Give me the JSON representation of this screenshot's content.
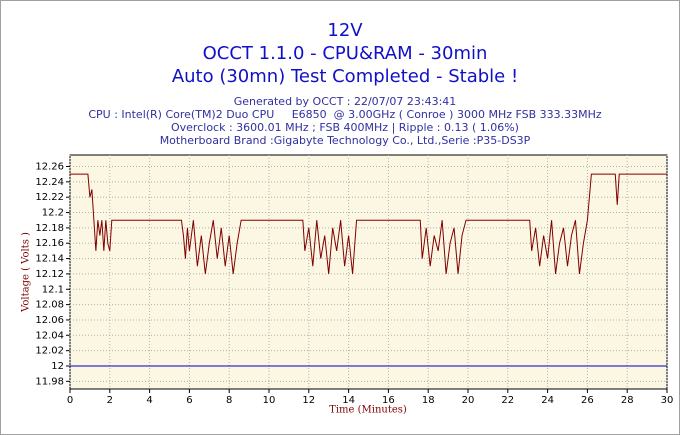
{
  "chart_data": {
    "type": "line",
    "title": [
      "12V",
      "OCCT 1.1.0 - CPU&RAM - 30min",
      "Auto (30mn) Test Completed - Stable !"
    ],
    "subtitle": [
      "Generated by OCCT : 22/07/07 23:43:41",
      "CPU : Intel(R) Core(TM)2 Duo CPU     E6850  @ 3.00GHz ( Conroe ) 3000 MHz FSB 333.33MHz",
      "Overclock : 3600.01 MHz ; FSB 400MHz | Ripple : 0.13 ( 1.06%)",
      "Motherboard Brand :Gigabyte Technology Co., Ltd.,Serie :P35-DS3P"
    ],
    "xlabel": "Time (Minutes)",
    "ylabel": "Voltage ( Volts )",
    "xlim": [
      0,
      30
    ],
    "xticks": [
      0,
      2,
      4,
      6,
      8,
      10,
      12,
      14,
      16,
      18,
      20,
      22,
      24,
      26,
      28,
      30
    ],
    "ylim": [
      11.97,
      12.275
    ],
    "yticks": [
      11.98,
      12,
      12.02,
      12.04,
      12.06,
      12.08,
      12.1,
      12.12,
      12.14,
      12.16,
      12.18,
      12.2,
      12.22,
      12.24,
      12.26
    ],
    "grid": true,
    "series": [
      {
        "color": "#0000c0",
        "x": [
          0,
          30
        ],
        "values": [
          12,
          12
        ]
      },
      {
        "color": "#800000",
        "x": [
          0,
          0.9,
          1.0,
          1.1,
          1.2,
          1.3,
          1.4,
          1.5,
          1.6,
          1.7,
          1.8,
          1.9,
          2.0,
          2.1,
          5.6,
          5.7,
          5.8,
          5.9,
          6.0,
          6.2,
          6.4,
          6.6,
          6.8,
          7.0,
          7.2,
          7.4,
          7.6,
          7.8,
          8.0,
          8.2,
          8.4,
          8.6,
          11.7,
          11.8,
          12.0,
          12.2,
          12.4,
          12.6,
          12.8,
          13.0,
          13.2,
          13.4,
          13.6,
          13.8,
          14.0,
          14.2,
          14.4,
          17.6,
          17.7,
          17.9,
          18.1,
          18.3,
          18.5,
          18.7,
          18.9,
          19.1,
          19.3,
          19.5,
          19.7,
          19.9,
          23.1,
          23.2,
          23.4,
          23.6,
          23.8,
          24.0,
          24.2,
          24.4,
          24.6,
          24.8,
          25.0,
          25.2,
          25.4,
          25.6,
          25.8,
          26.0,
          26.2,
          27.4,
          27.5,
          27.6,
          30
        ],
        "values": [
          12.25,
          12.25,
          12.22,
          12.23,
          12.19,
          12.15,
          12.19,
          12.17,
          12.19,
          12.15,
          12.19,
          12.16,
          12.15,
          12.19,
          12.19,
          12.17,
          12.14,
          12.18,
          12.15,
          12.19,
          12.13,
          12.17,
          12.12,
          12.16,
          12.19,
          12.14,
          12.18,
          12.13,
          12.17,
          12.12,
          12.16,
          12.19,
          12.19,
          12.15,
          12.18,
          12.13,
          12.19,
          12.14,
          12.17,
          12.12,
          12.18,
          12.15,
          12.19,
          12.13,
          12.17,
          12.12,
          12.19,
          12.19,
          12.14,
          12.18,
          12.13,
          12.17,
          12.15,
          12.19,
          12.12,
          12.16,
          12.18,
          12.12,
          12.17,
          12.19,
          12.19,
          12.15,
          12.18,
          12.13,
          12.17,
          12.14,
          12.19,
          12.12,
          12.16,
          12.18,
          12.13,
          12.17,
          12.19,
          12.12,
          12.16,
          12.19,
          12.25,
          12.25,
          12.21,
          12.25,
          12.25
        ]
      }
    ]
  }
}
